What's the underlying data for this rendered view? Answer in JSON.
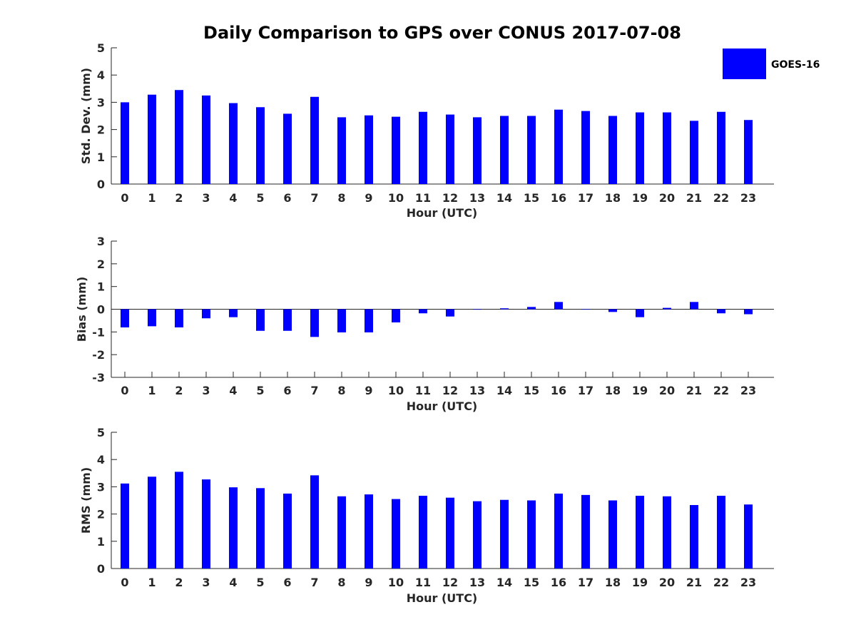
{
  "colors": {
    "bar": "#0000ff",
    "axis": "#262626"
  },
  "chart_data": {
    "type": "bar",
    "title": "Daily Comparison to GPS over CONUS 2017-07-08",
    "legend": {
      "label": "GOES-16",
      "placement": "top-right"
    },
    "categories": [
      "0",
      "1",
      "2",
      "3",
      "4",
      "5",
      "6",
      "7",
      "8",
      "9",
      "10",
      "11",
      "12",
      "13",
      "14",
      "15",
      "16",
      "17",
      "18",
      "19",
      "20",
      "21",
      "22",
      "23"
    ],
    "panels": [
      {
        "id": "stddev",
        "ylabel": "Std. Dev. (mm)",
        "xlabel": "Hour (UTC)",
        "ylim": [
          0,
          5
        ],
        "yticks": [
          0,
          1,
          2,
          3,
          4,
          5
        ],
        "series": [
          {
            "name": "GOES-16",
            "values": [
              3.0,
              3.28,
              3.45,
              3.25,
              2.97,
              2.82,
              2.58,
              3.2,
              2.45,
              2.52,
              2.47,
              2.65,
              2.55,
              2.45,
              2.5,
              2.5,
              2.73,
              2.68,
              2.5,
              2.63,
              2.63,
              2.32,
              2.65,
              2.35
            ]
          }
        ]
      },
      {
        "id": "bias",
        "ylabel": "Bias (mm)",
        "xlabel": "Hour (UTC)",
        "ylim": [
          -3,
          3
        ],
        "yticks": [
          -3,
          -2,
          -1,
          0,
          1,
          2,
          3
        ],
        "zero_line": true,
        "series": [
          {
            "name": "GOES-16",
            "values": [
              -0.8,
              -0.75,
              -0.8,
              -0.4,
              -0.35,
              -0.95,
              -0.95,
              -1.22,
              -1.02,
              -1.02,
              -0.58,
              -0.18,
              -0.32,
              -0.02,
              0.04,
              0.1,
              0.32,
              0.0,
              -0.12,
              -0.35,
              0.06,
              0.32,
              -0.18,
              -0.22
            ]
          }
        ]
      },
      {
        "id": "rms",
        "ylabel": "RMS (mm)",
        "xlabel": "Hour (UTC)",
        "ylim": [
          0,
          5
        ],
        "yticks": [
          0,
          1,
          2,
          3,
          4,
          5
        ],
        "series": [
          {
            "name": "GOES-16",
            "values": [
              3.12,
              3.37,
              3.55,
              3.27,
              2.98,
              2.95,
              2.75,
              3.42,
              2.65,
              2.72,
              2.55,
              2.67,
              2.6,
              2.47,
              2.52,
              2.5,
              2.75,
              2.7,
              2.5,
              2.67,
              2.65,
              2.33,
              2.67,
              2.35
            ]
          }
        ]
      }
    ]
  }
}
